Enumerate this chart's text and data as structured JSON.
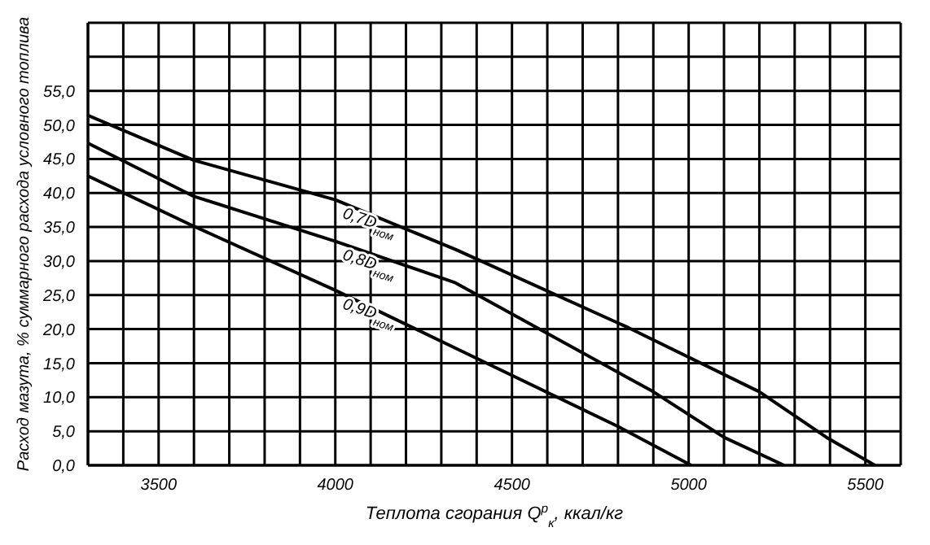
{
  "chart_data": {
    "type": "line",
    "xlabel": "Теплота сгорания Q$^{р}$$_{к}$, ккал/кг",
    "ylabel": "Расход мазута, % суммарного расхода условного топлива",
    "xlim": [
      3300,
      5600
    ],
    "xticks": [
      {
        "value": 3300,
        "label": null
      },
      {
        "value": 3400,
        "label": null
      },
      3500,
      {
        "value": 3600,
        "label": null
      },
      {
        "value": 3700,
        "label": null
      },
      {
        "value": 3800,
        "label": null
      },
      {
        "value": 3900,
        "label": null
      },
      4000,
      {
        "value": 4100,
        "label": null
      },
      {
        "value": 4200,
        "label": null
      },
      {
        "value": 4300,
        "label": null
      },
      {
        "value": 4400,
        "label": null
      },
      4500,
      {
        "value": 4600,
        "label": null
      },
      {
        "value": 4700,
        "label": null
      },
      {
        "value": 4800,
        "label": null
      },
      {
        "value": 4900,
        "label": null
      },
      5000,
      {
        "value": 5100,
        "label": null
      },
      {
        "value": 5200,
        "label": null
      },
      {
        "value": 5300,
        "label": null
      },
      {
        "value": 5400,
        "label": null
      },
      5500,
      {
        "value": 5600,
        "label": null
      }
    ],
    "ylim": [
      0,
      65
    ],
    "yticks": [
      {
        "value": 0,
        "label": "0,0"
      },
      {
        "value": 5,
        "label": "5,0"
      },
      {
        "value": 10,
        "label": "10,0"
      },
      {
        "value": 15,
        "label": "15,0"
      },
      {
        "value": 20,
        "label": "20,0"
      },
      {
        "value": 25,
        "label": "25,0"
      },
      {
        "value": 30,
        "label": "30,0"
      },
      {
        "value": 35,
        "label": "35,0"
      },
      {
        "value": 40,
        "label": "40,0"
      },
      {
        "value": 45,
        "label": "45,0"
      },
      {
        "value": 50,
        "label": "50,0"
      },
      {
        "value": 55,
        "label": "55,0"
      },
      {
        "value": 60,
        "label": null
      },
      {
        "value": 65,
        "label": null
      }
    ],
    "grid": true,
    "legend": false,
    "marker": "none",
    "line_style": "solid",
    "series": [
      {
        "name": "0,7D$_{ном}$",
        "color": "#000000",
        "x": [
          3300,
          3600,
          4000,
          4340,
          4830,
          5200,
          5390,
          5527
        ],
        "values": [
          51.4,
          44.8,
          39.0,
          31.7,
          20.2,
          10.8,
          4.1,
          0
        ]
      },
      {
        "name": "0,8D$_{ном}$",
        "color": "#000000",
        "x": [
          3300,
          3600,
          4000,
          4340,
          4900,
          5100,
          5270
        ],
        "values": [
          47.3,
          39.5,
          32.9,
          26.8,
          10.8,
          4.1,
          0
        ]
      },
      {
        "name": "0,9D$_{ном}$",
        "color": "#000000",
        "x": [
          3300,
          3600,
          4000,
          4340,
          4800,
          5007
        ],
        "values": [
          42.5,
          35.1,
          25.7,
          17.2,
          5.7,
          0
        ]
      }
    ]
  }
}
